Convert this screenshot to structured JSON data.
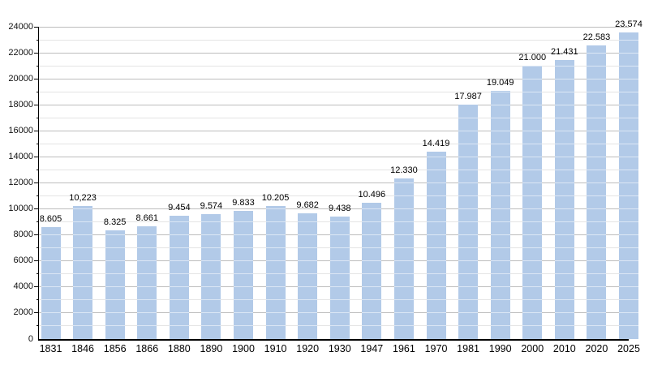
{
  "chart_data": {
    "type": "bar",
    "title": "",
    "xlabel": "",
    "ylabel": "",
    "categories": [
      "1831",
      "1846",
      "1856",
      "1866",
      "1880",
      "1890",
      "1900",
      "1910",
      "1920",
      "1930",
      "1947",
      "1961",
      "1970",
      "1981",
      "1990",
      "2000",
      "2010",
      "2020",
      "2025"
    ],
    "values": [
      8605,
      10223,
      8325,
      8661,
      9454,
      9574,
      9833,
      10205,
      9682,
      9438,
      10496,
      12330,
      14419,
      17987,
      19049,
      21000,
      21431,
      22583,
      23574
    ],
    "value_labels": [
      "8.605",
      "10,223",
      "8.325",
      "8.661",
      "9.454",
      "9.574",
      "9.833",
      "10.205",
      "9.682",
      "9.438",
      "10.496",
      "12.330",
      "14.419",
      "17.987",
      "19.049",
      "21.000",
      "21.431",
      "22.583",
      "23.574"
    ],
    "ylim": [
      0,
      24000
    ],
    "y_major_step": 2000,
    "y_minor_step": 1000,
    "y_tick_labels": [
      "0",
      "2000",
      "4000",
      "6000",
      "8000",
      "10000",
      "12000",
      "14000",
      "16000",
      "18000",
      "20000",
      "22000",
      "24000"
    ],
    "grid": true,
    "legend_position": "none",
    "colors": {
      "bar": "#b2cae8",
      "grid_major": "#bdbdbd",
      "grid_minor": "#e4e4e4",
      "grid_on_bar": "rgba(255,255,255,0.55)",
      "axis": "#000000",
      "text": "#000000"
    }
  }
}
